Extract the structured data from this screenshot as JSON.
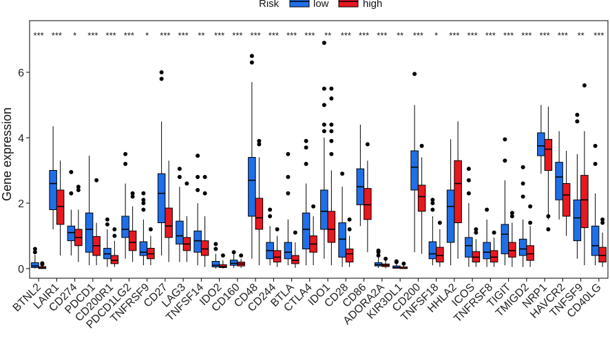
{
  "chart_data": {
    "type": "boxplot",
    "title": "",
    "xlabel": "",
    "ylabel": "Gene expression",
    "ylim": [
      -0.2,
      7.1
    ],
    "yticks": [
      0,
      2,
      4,
      6
    ],
    "legend": {
      "title": "Risk",
      "placement": "top",
      "entries": [
        {
          "name": "low",
          "color": "#1f6fe8"
        },
        {
          "name": "high",
          "color": "#e8181f"
        }
      ]
    },
    "colors": {
      "low": "#1f6fe8",
      "high": "#e8181f",
      "outlier": "#000000"
    },
    "categories": [
      "BTNL2",
      "LAIR1",
      "CD274",
      "PDCD1",
      "CD200R1",
      "PDCD1LG2",
      "TNFRSF9",
      "CD27",
      "LAG3",
      "TNFSF14",
      "IDO2",
      "CD160",
      "CD48",
      "CD244",
      "BTLA",
      "CTLA4",
      "IDO1",
      "CD28",
      "CD86",
      "ADORA2A",
      "KIR3DL1",
      "CD200",
      "TNFSF18",
      "HHLA2",
      "ICOS",
      "TNFRSF8",
      "TIGIT",
      "TMIGD2",
      "NRP1",
      "HAVCR2",
      "TNFSF9",
      "CD40LG"
    ],
    "significance": [
      "***",
      "***",
      "*",
      "***",
      "***",
      "***",
      "*",
      "***",
      "***",
      "**",
      "***",
      "***",
      "***",
      "***",
      "***",
      "***",
      "**",
      "***",
      "***",
      "***",
      "**",
      "***",
      "*",
      "***",
      "***",
      "***",
      "***",
      "***",
      "***",
      "***",
      "**",
      "***"
    ],
    "series": [
      {
        "name": "low",
        "boxes": [
          [
            0,
            0.03,
            0.08,
            0.18,
            0.42,
            [
              0.5,
              0.6
            ]
          ],
          [
            1.2,
            1.8,
            2.6,
            3.0,
            4.35,
            []
          ],
          [
            0.4,
            0.85,
            1.1,
            1.3,
            1.8,
            [
              2.3,
              2.95
            ]
          ],
          [
            0.1,
            0.5,
            1.2,
            1.7,
            3.45,
            []
          ],
          [
            0.05,
            0.3,
            0.45,
            0.62,
            1.2,
            [
              1.5,
              1.35
            ]
          ],
          [
            0.3,
            0.95,
            1.2,
            1.6,
            2.6,
            [
              3.2,
              3.5
            ]
          ],
          [
            0.1,
            0.4,
            0.5,
            0.82,
            1.5,
            [
              1.8,
              2.0,
              2.1,
              2.3
            ]
          ],
          [
            0.4,
            1.4,
            2.3,
            2.9,
            4.5,
            [
              5.8,
              6.0
            ]
          ],
          [
            0.2,
            0.75,
            1.0,
            1.45,
            2.5,
            [
              2.8,
              3.05
            ]
          ],
          [
            0.1,
            0.5,
            0.85,
            1.15,
            2.0,
            [
              2.4,
              2.8,
              3.45
            ]
          ],
          [
            0,
            0.05,
            0.1,
            0.22,
            0.45,
            [
              0.6,
              0.75
            ]
          ],
          [
            0.02,
            0.1,
            0.16,
            0.26,
            0.45,
            [
              0.5
            ]
          ],
          [
            0.3,
            1.6,
            2.7,
            3.4,
            5.7,
            [
              6.3,
              6.5
            ]
          ],
          [
            0.1,
            0.3,
            0.55,
            0.8,
            1.3,
            [
              1.6,
              1.8
            ]
          ],
          [
            0.1,
            0.3,
            0.5,
            0.8,
            1.5,
            [
              2.3,
              2.8,
              3.5
            ]
          ],
          [
            0.1,
            0.6,
            1.2,
            1.7,
            2.6,
            [
              3.2,
              3.7,
              3.9
            ]
          ],
          [
            0.3,
            1.2,
            1.75,
            2.4,
            4.0,
            [
              4.2,
              4.4,
              5.0,
              5.5,
              6.9
            ]
          ],
          [
            0.05,
            0.35,
            0.9,
            1.4,
            2.5,
            [
              2.9
            ]
          ],
          [
            1.3,
            1.95,
            2.5,
            3.05,
            4.4,
            []
          ],
          [
            0.02,
            0.08,
            0.12,
            0.18,
            0.35,
            [
              0.4,
              0.5,
              0.55
            ]
          ],
          [
            0,
            0.01,
            0.03,
            0.08,
            0.15,
            [
              0.2,
              0.22
            ]
          ],
          [
            0.5,
            2.4,
            3.1,
            3.6,
            5.0,
            [
              5.95
            ]
          ],
          [
            0.1,
            0.3,
            0.45,
            0.82,
            1.6,
            [
              1.8,
              2.0,
              2.1
            ]
          ],
          [
            0.1,
            0.8,
            1.9,
            2.4,
            3.95,
            []
          ],
          [
            0.05,
            0.35,
            0.7,
            0.95,
            2.0,
            [
              2.3,
              2.7,
              3.05
            ]
          ],
          [
            0.05,
            0.3,
            0.5,
            0.8,
            1.5,
            [
              1.8
            ]
          ],
          [
            0.1,
            0.45,
            1.05,
            1.35,
            2.7,
            [
              3.3,
              3.95
            ]
          ],
          [
            0.05,
            0.4,
            0.6,
            0.9,
            1.5,
            [
              2.2,
              2.6,
              3.1
            ]
          ],
          [
            2.9,
            3.45,
            3.75,
            4.15,
            5.0,
            []
          ],
          [
            1.5,
            2.1,
            2.8,
            3.25,
            4.2,
            []
          ],
          [
            0.3,
            0.85,
            1.55,
            2.1,
            3.5,
            [
              4.5,
              4.7
            ]
          ],
          [
            0.1,
            0.4,
            0.7,
            1.3,
            2.3,
            [
              3.2,
              3.75
            ]
          ]
        ]
      },
      {
        "name": "high",
        "boxes": [
          [
            0,
            0,
            0.02,
            0.06,
            0.1,
            [
              0.13,
              0.16
            ]
          ],
          [
            0.4,
            1.35,
            1.9,
            2.4,
            3.3,
            []
          ],
          [
            0.2,
            0.7,
            0.95,
            1.2,
            1.8,
            [
              2.4,
              2.5
            ]
          ],
          [
            0.1,
            0.4,
            0.7,
            0.98,
            1.4,
            [
              2.7
            ]
          ],
          [
            0.05,
            0.15,
            0.25,
            0.4,
            0.85,
            [
              1.0,
              1.2
            ]
          ],
          [
            0.2,
            0.55,
            0.8,
            1.15,
            1.9,
            [
              2.2,
              2.3
            ]
          ],
          [
            0.1,
            0.3,
            0.45,
            0.62,
            1.0,
            [
              1.2
            ]
          ],
          [
            0.2,
            0.95,
            1.3,
            1.85,
            3.3,
            []
          ],
          [
            0.2,
            0.55,
            0.75,
            0.95,
            1.6,
            [
              2.6
            ]
          ],
          [
            0.05,
            0.4,
            0.6,
            0.85,
            1.6,
            [
              2.3,
              2.8
            ]
          ],
          [
            0,
            0.03,
            0.06,
            0.12,
            0.25,
            [
              0.4
            ]
          ],
          [
            0.02,
            0.08,
            0.14,
            0.2,
            0.3,
            [
              0.4
            ]
          ],
          [
            0.1,
            1.2,
            1.55,
            2.15,
            3.4,
            [
              3.8,
              3.9
            ]
          ],
          [
            0.05,
            0.2,
            0.35,
            0.55,
            1.0,
            [
              1.2
            ]
          ],
          [
            0.02,
            0.15,
            0.25,
            0.4,
            0.8,
            [
              1.1
            ]
          ],
          [
            0.1,
            0.5,
            0.75,
            1.0,
            1.6,
            [
              1.9
            ]
          ],
          [
            0.1,
            0.8,
            1.2,
            1.75,
            3.0,
            [
              3.5,
              3.9,
              4.2,
              4.4,
              5.2,
              5.5
            ]
          ],
          [
            0.05,
            0.2,
            0.45,
            0.6,
            1.0,
            [
              1.2,
              1.5
            ]
          ],
          [
            0.5,
            1.5,
            1.95,
            2.45,
            3.3,
            [
              3.8
            ]
          ],
          [
            0.01,
            0.06,
            0.1,
            0.14,
            0.25,
            [
              0.3
            ]
          ],
          [
            0,
            0,
            0.01,
            0.05,
            0.1,
            [
              0.15
            ]
          ],
          [
            0.45,
            1.75,
            2.2,
            2.55,
            3.4,
            [
              3.75
            ]
          ],
          [
            0.05,
            0.2,
            0.4,
            0.65,
            1.2,
            [
              1.4
            ]
          ],
          [
            0.3,
            1.4,
            2.6,
            3.3,
            4.5,
            []
          ],
          [
            0.05,
            0.2,
            0.35,
            0.52,
            0.9,
            [
              1.1,
              1.2
            ]
          ],
          [
            0.05,
            0.2,
            0.35,
            0.55,
            0.95,
            [
              1.1
            ]
          ],
          [
            0.05,
            0.35,
            0.55,
            0.8,
            1.4,
            [
              1.6,
              1.7
            ]
          ],
          [
            0.05,
            0.25,
            0.45,
            0.7,
            1.3,
            [
              1.4,
              1.9
            ]
          ],
          [
            1.5,
            3.0,
            3.65,
            3.95,
            4.95,
            [
              1.6,
              1.2
            ]
          ],
          [
            1.0,
            1.6,
            2.25,
            2.6,
            3.6,
            []
          ],
          [
            0.1,
            1.25,
            2.1,
            2.85,
            4.2,
            [
              5.6
            ]
          ],
          [
            0.05,
            0.2,
            0.4,
            0.65,
            1.1,
            [
              1.4,
              1.5
            ]
          ]
        ]
      }
    ]
  }
}
